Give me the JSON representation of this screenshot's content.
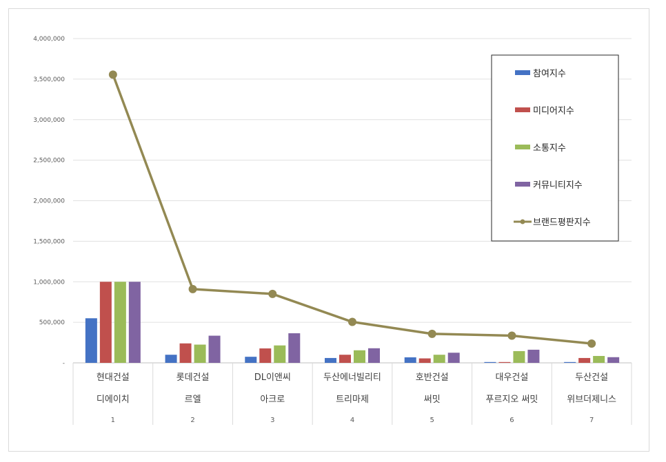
{
  "chart_data": {
    "type": "bar",
    "categories": [
      {
        "line1": "현대건설",
        "line2": "디에이치",
        "index": "1"
      },
      {
        "line1": "롯데건설",
        "line2": "르엘",
        "index": "2"
      },
      {
        "line1": "DL이앤씨",
        "line2": "아크로",
        "index": "3"
      },
      {
        "line1": "두산에너빌리티",
        "line2": "트리마제",
        "index": "4"
      },
      {
        "line1": "호반건설",
        "line2": "써밋",
        "index": "5"
      },
      {
        "line1": "대우건설",
        "line2": "푸르지오 써밋",
        "index": "6"
      },
      {
        "line1": "두산건설",
        "line2": "위브더제니스",
        "index": "7"
      }
    ],
    "series": [
      {
        "name": "참여지수",
        "kind": "bar",
        "color": "#4472c4",
        "values": [
          550000,
          100000,
          75000,
          60000,
          68000,
          10000,
          10000
        ]
      },
      {
        "name": "미디어지수",
        "kind": "bar",
        "color": "#c0504d",
        "values": [
          1000000,
          240000,
          178000,
          100000,
          55000,
          10000,
          60000
        ]
      },
      {
        "name": "소통지수",
        "kind": "bar",
        "color": "#9bbb59",
        "values": [
          1000000,
          225000,
          215000,
          155000,
          100000,
          145000,
          85000
        ]
      },
      {
        "name": "커뮤니티지수",
        "kind": "bar",
        "color": "#8064a2",
        "values": [
          1000000,
          335000,
          365000,
          180000,
          125000,
          162000,
          70000
        ]
      },
      {
        "name": "브랜드평판지수",
        "kind": "line",
        "color": "#938953",
        "values": [
          3555000,
          910000,
          850000,
          505000,
          358000,
          335000,
          238000
        ]
      }
    ],
    "yticks": [
      "4,000,000",
      "3,500,000",
      "3,000,000",
      "2,500,000",
      "2,000,000",
      "1,500,000",
      "1,000,000",
      "500,000",
      "-"
    ],
    "ylim": [
      0,
      4000000
    ],
    "grid": true,
    "legend_position": "top-right",
    "title": "",
    "xlabel": "",
    "ylabel": ""
  }
}
